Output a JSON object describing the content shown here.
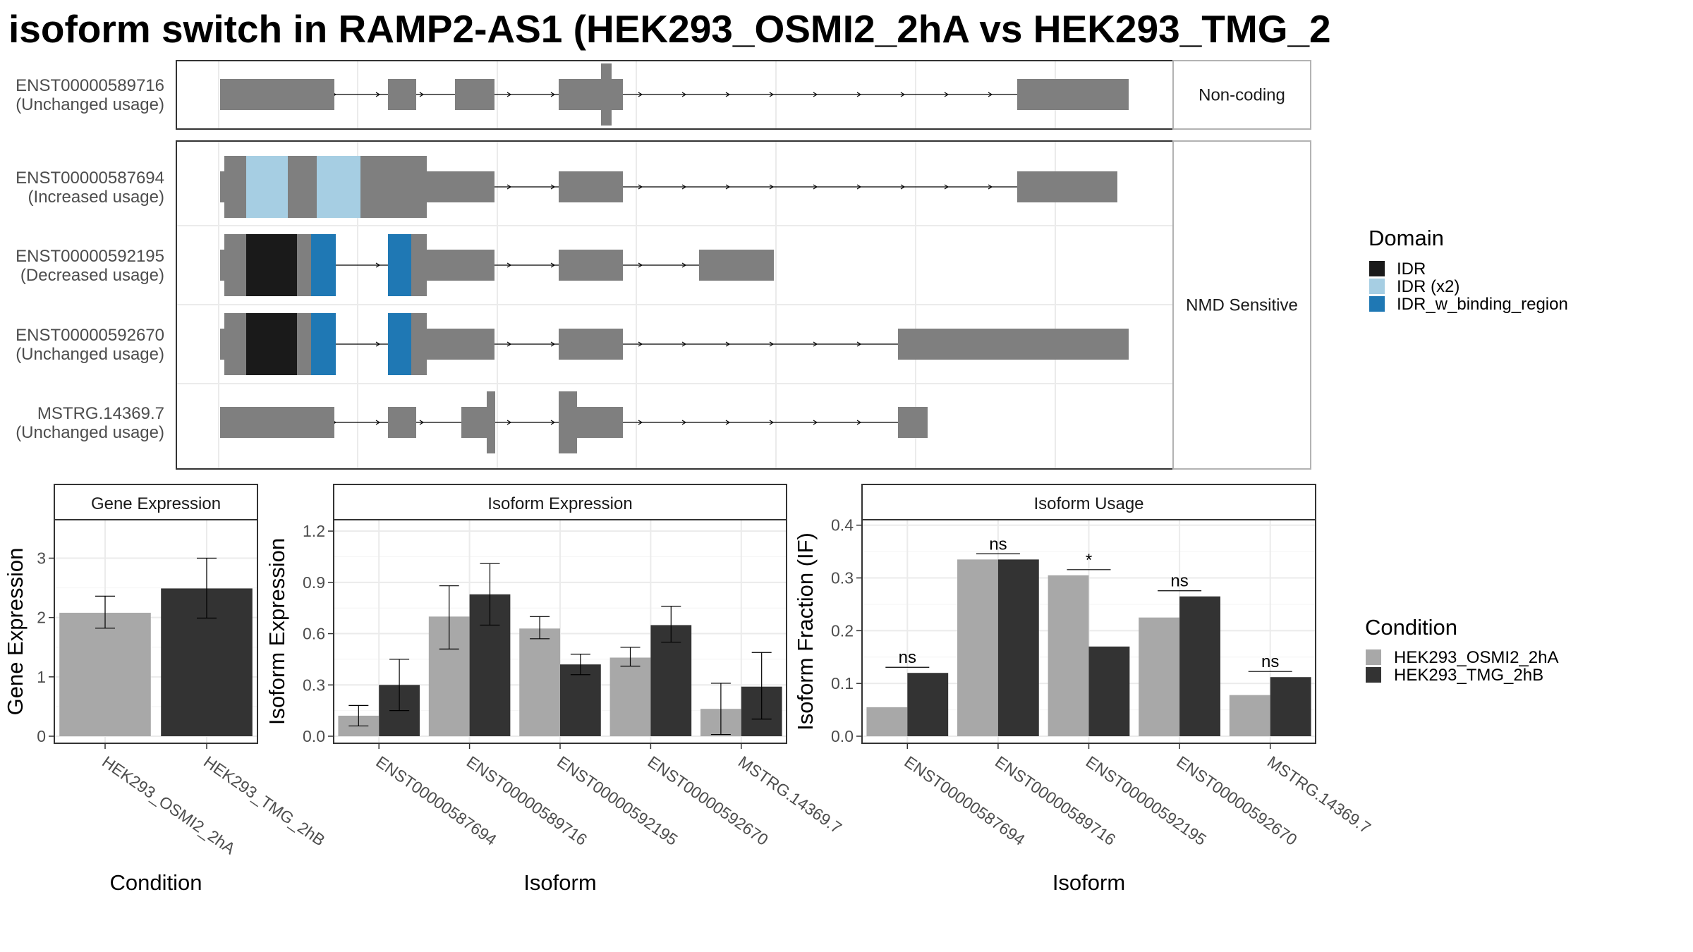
{
  "title": "isoform switch in RAMP2-AS1 (HEK293_OSMI2_2hA vs HEK293_TMG_2",
  "colors": {
    "exon": "#7f7f7f",
    "IDR": "#1a1a1a",
    "IDR (x2)": "#a6cee3",
    "IDR_w_binding_region": "#1f78b4",
    "HEK293_OSMI2_2hA": "#a8a8a8",
    "HEK293_TMG_2hB": "#333333"
  },
  "structure": {
    "facets": [
      {
        "label": "Non-coding",
        "isoforms": [
          {
            "name": "ENST00000589716",
            "status": "(Unchanged usage)"
          }
        ]
      },
      {
        "label": "NMD Sensitive",
        "isoforms": [
          {
            "name": "ENST00000587694",
            "status": "(Increased usage)"
          },
          {
            "name": "ENST00000592195",
            "status": "(Decreased usage)"
          },
          {
            "name": "ENST00000592670",
            "status": "(Unchanged usage)"
          },
          {
            "name": "MSTRG.14369.7",
            "status": "(Unchanged usage)"
          }
        ]
      }
    ],
    "domain_legend": {
      "title": "Domain",
      "items": [
        "IDR",
        "IDR (x2)",
        "IDR_w_binding_region"
      ]
    }
  },
  "chart_data": [
    {
      "type": "bar",
      "title": "Gene Expression",
      "xlabel": "Condition",
      "ylabel": "Gene Expression",
      "ylim": [
        0,
        3.6
      ],
      "yticks": [
        0,
        1,
        2,
        3
      ],
      "categories": [
        "HEK293_OSMI2_2hA",
        "HEK293_TMG_2hB"
      ],
      "series": [
        {
          "name": "HEK293_OSMI2_2hA",
          "values": [
            2.08,
            null
          ],
          "err_low": [
            1.82,
            null
          ],
          "err_high": [
            2.36,
            null
          ]
        },
        {
          "name": "HEK293_TMG_2hB",
          "values": [
            null,
            2.49
          ],
          "err_low": [
            null,
            1.99
          ],
          "err_high": [
            null,
            3.0
          ]
        }
      ]
    },
    {
      "type": "bar",
      "title": "Isoform Expression",
      "xlabel": "Isoform",
      "ylabel": "Isoform Expression",
      "ylim": [
        0,
        1.25
      ],
      "yticks": [
        0.0,
        0.3,
        0.6,
        0.9,
        1.2
      ],
      "yticklabels": [
        "0.0",
        "0.3",
        "0.6",
        "0.9",
        "1.2"
      ],
      "categories": [
        "ENST00000587694",
        "ENST00000589716",
        "ENST00000592195",
        "ENST00000592670",
        "MSTRG.14369.7"
      ],
      "series": [
        {
          "name": "HEK293_OSMI2_2hA",
          "values": [
            0.12,
            0.7,
            0.63,
            0.46,
            0.16
          ],
          "err_low": [
            0.06,
            0.51,
            0.57,
            0.41,
            0.01
          ],
          "err_high": [
            0.18,
            0.88,
            0.7,
            0.52,
            0.31
          ]
        },
        {
          "name": "HEK293_TMG_2hB",
          "values": [
            0.3,
            0.83,
            0.42,
            0.65,
            0.29
          ],
          "err_low": [
            0.15,
            0.65,
            0.36,
            0.55,
            0.1
          ],
          "err_high": [
            0.45,
            1.01,
            0.48,
            0.76,
            0.49
          ]
        }
      ]
    },
    {
      "type": "bar",
      "title": "Isoform Usage",
      "xlabel": "Isoform",
      "ylabel": "Isoform Fraction (IF)",
      "ylim": [
        0,
        0.405
      ],
      "yticks": [
        0.0,
        0.1,
        0.2,
        0.3,
        0.4
      ],
      "yticklabels": [
        "0.0",
        "0.1",
        "0.2",
        "0.3",
        "0.4"
      ],
      "categories": [
        "ENST00000587694",
        "ENST00000589716",
        "ENST00000592195",
        "ENST00000592670",
        "MSTRG.14369.7"
      ],
      "series": [
        {
          "name": "HEK293_OSMI2_2hA",
          "values": [
            0.055,
            0.335,
            0.305,
            0.225,
            0.078
          ]
        },
        {
          "name": "HEK293_TMG_2hB",
          "values": [
            0.12,
            0.335,
            0.17,
            0.265,
            0.112
          ]
        }
      ],
      "significance": [
        "ns",
        "ns",
        "*",
        "ns",
        "ns"
      ]
    }
  ],
  "condition_legend": {
    "title": "Condition",
    "items": [
      "HEK293_OSMI2_2hA",
      "HEK293_TMG_2hB"
    ]
  }
}
